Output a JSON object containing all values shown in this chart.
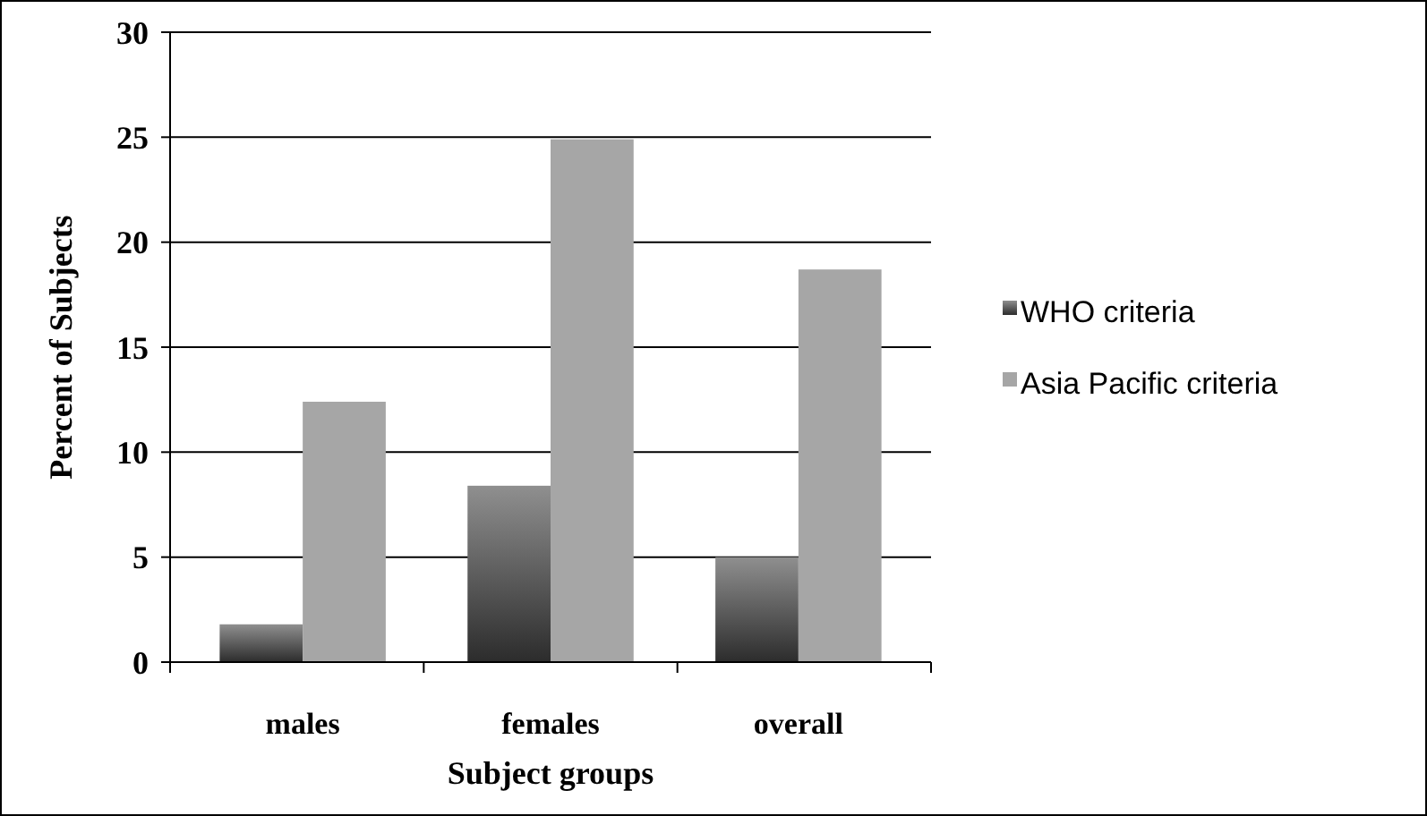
{
  "chart_data": {
    "type": "bar",
    "xlabel": "Subject groups",
    "ylabel": "Percent of Subjects",
    "categories": [
      "males",
      "females",
      "overall"
    ],
    "series": [
      {
        "name": "WHO criteria",
        "color": "#5a5a5a",
        "values": [
          1.8,
          8.4,
          5.0
        ]
      },
      {
        "name": "Asia Pacific criteria",
        "color": "#a6a6a6",
        "values": [
          12.4,
          24.9,
          18.7
        ]
      }
    ],
    "ylim": [
      0,
      30
    ],
    "yticks": [
      0,
      5,
      10,
      15,
      20,
      25,
      30
    ],
    "grid": "y",
    "legend": "right"
  }
}
